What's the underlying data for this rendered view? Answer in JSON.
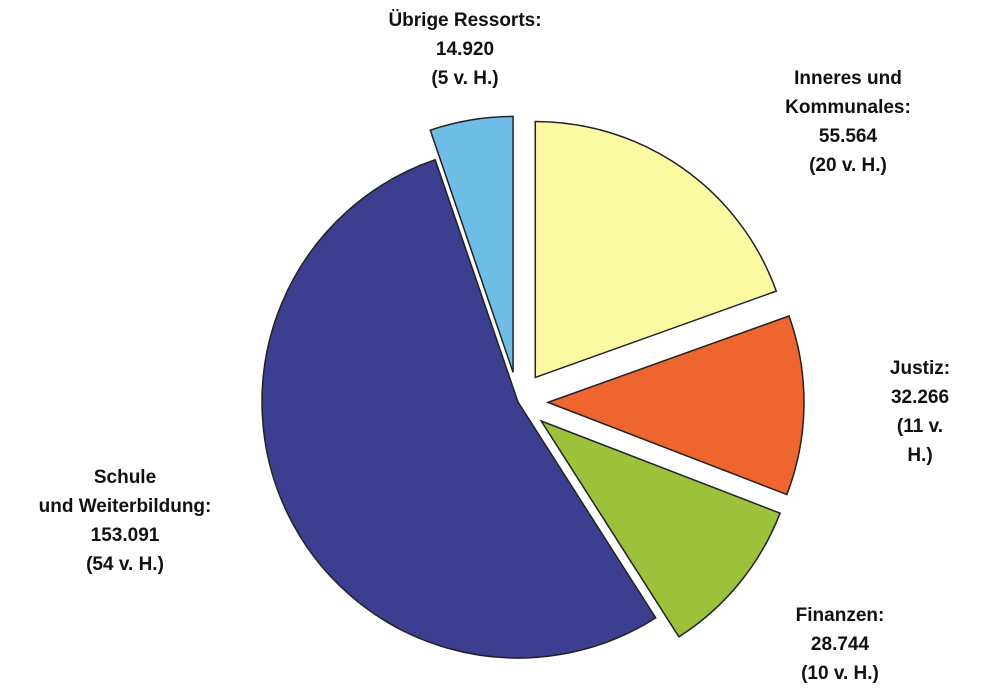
{
  "chart_data": {
    "type": "pie",
    "categories": [
      "Inneres und\nKommunales:",
      "Justiz:",
      "Finanzen:",
      "Schule\nund Weiterbildung:",
      "Übrige Ressorts:"
    ],
    "values": [
      55564,
      32266,
      28744,
      153091,
      14920
    ],
    "value_labels": [
      "55.564",
      "32.266",
      "28.744",
      "153.091",
      "14.920"
    ],
    "share_labels": [
      "(20 v. H.)",
      "(11 v. H.)",
      "(10 v. H.)",
      "(54 v. H.)",
      "(5 v. H.)"
    ],
    "colors": [
      "#fbf9a2",
      "#ef6530",
      "#9cc23b",
      "#3c3f8f",
      "#6dbde6"
    ]
  }
}
